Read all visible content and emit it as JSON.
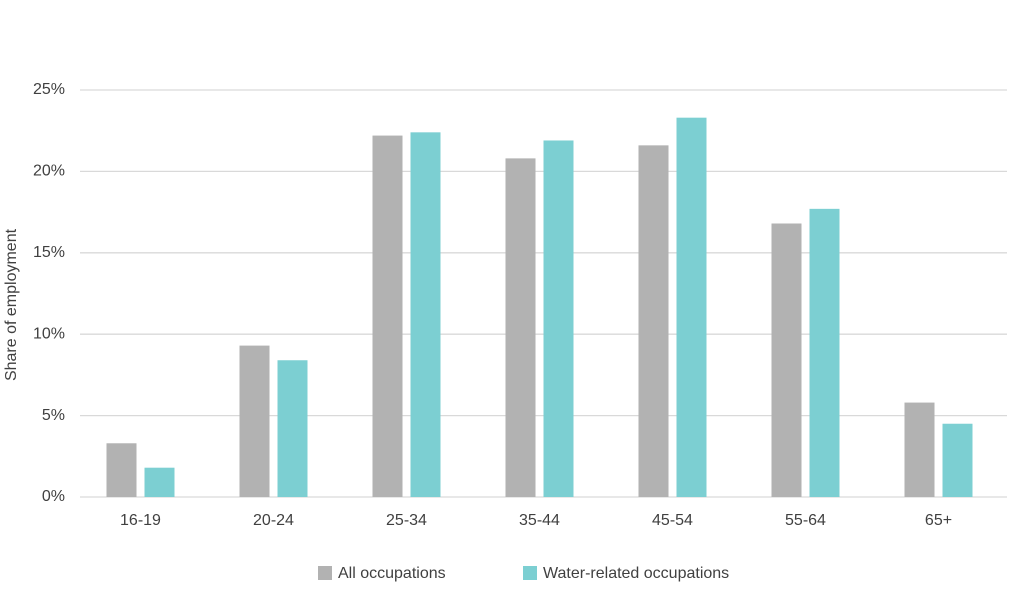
{
  "chart_data": {
    "type": "bar",
    "y_label": "Share of employment",
    "categories": [
      "16-19",
      "20-24",
      "25-34",
      "35-44",
      "45-54",
      "55-64",
      "65+"
    ],
    "series": [
      {
        "name": "All occupations",
        "color": "#b2b2b2",
        "values": [
          3.3,
          9.3,
          22.2,
          20.8,
          21.6,
          16.8,
          5.8
        ]
      },
      {
        "name": "Water-related occupations",
        "color": "#7ccfd2",
        "values": [
          1.8,
          8.4,
          22.4,
          21.9,
          23.3,
          17.7,
          4.5
        ]
      }
    ],
    "ylim": [
      0,
      25
    ],
    "yticks": [
      {
        "value": 0,
        "label": "0%"
      },
      {
        "value": 5,
        "label": "5%"
      },
      {
        "value": 10,
        "label": "10%"
      },
      {
        "value": 15,
        "label": "15%"
      },
      {
        "value": 20,
        "label": "20%"
      },
      {
        "value": 25,
        "label": "25%"
      }
    ],
    "grid": true,
    "legend": "bottom"
  }
}
